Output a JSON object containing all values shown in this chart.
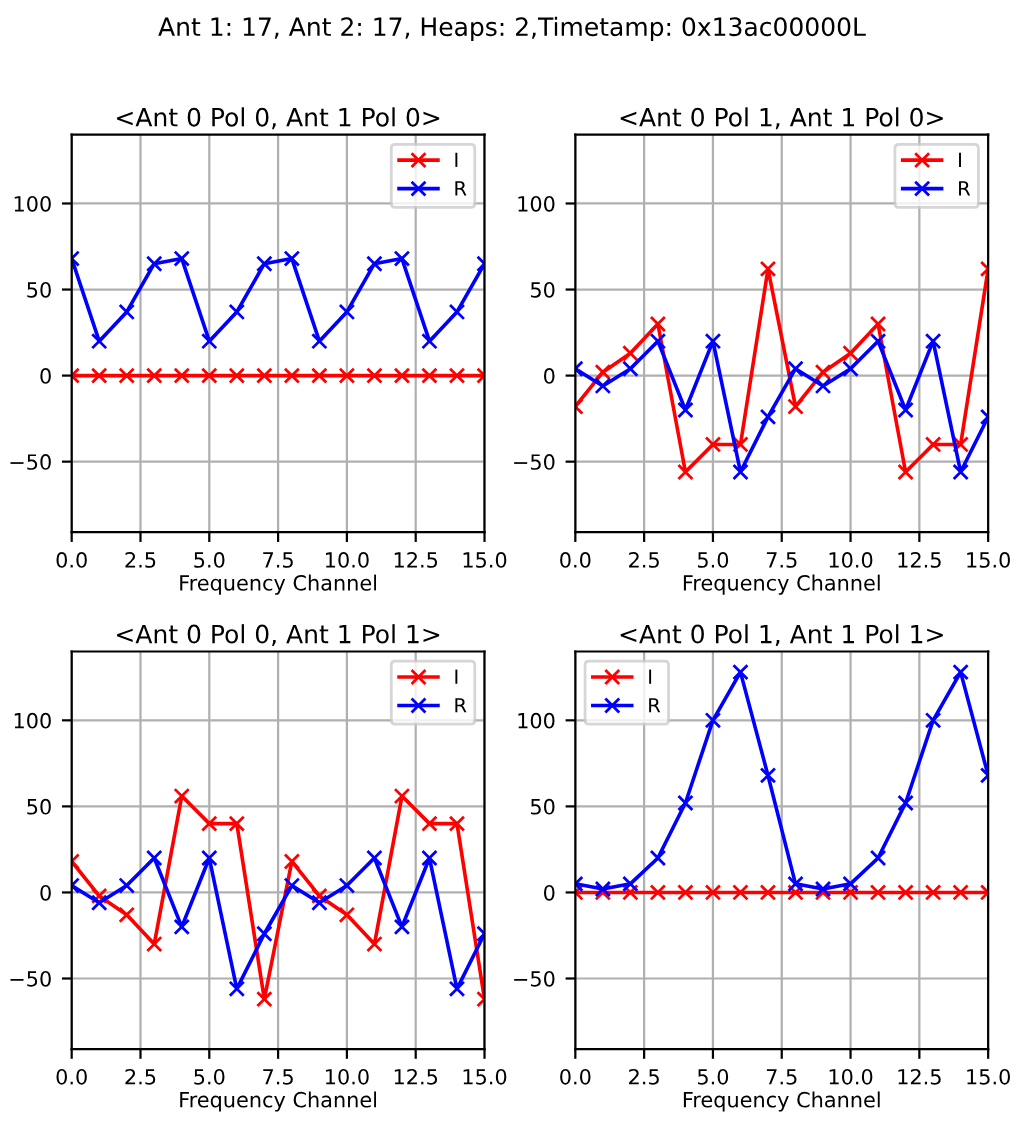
{
  "chart_data": [
    {
      "type": "line",
      "title": "<Ant 0 Pol 0, Ant 1 Pol 0>",
      "xlabel": "Frequency Channel",
      "x": [
        0,
        1,
        2,
        3,
        4,
        5,
        6,
        7,
        8,
        9,
        10,
        11,
        12,
        13,
        14,
        15
      ],
      "xlim": [
        0,
        15
      ],
      "xticks": [
        {
          "value": 0,
          "label": "0.0"
        },
        2.5,
        {
          "value": 5,
          "label": "5.0"
        },
        7.5,
        {
          "value": 10,
          "label": "10.0"
        },
        12.5,
        {
          "value": 15,
          "label": "15.0"
        }
      ],
      "ylim": [
        -91,
        140
      ],
      "yticks": [
        -50,
        0,
        50,
        100
      ],
      "grid": true,
      "legend": "top right",
      "marker": "cross",
      "annotations": [
        "Ant 1: 17, Ant 2: 17, Heaps: 2,Timetamp: 0x13ac00000L"
      ],
      "series": [
        {
          "name": "I",
          "color": "#ff0000",
          "values": [
            0,
            0,
            0,
            0,
            0,
            0,
            0,
            0,
            0,
            0,
            0,
            0,
            0,
            0,
            0,
            0
          ]
        },
        {
          "name": "R",
          "color": "#0000ff",
          "values": [
            68,
            20,
            37,
            65,
            68,
            20,
            37,
            65,
            68,
            20,
            37,
            65,
            68,
            20,
            37,
            65
          ]
        }
      ]
    },
    {
      "type": "line",
      "title": "<Ant 0 Pol 1, Ant 1 Pol 0>",
      "xlabel": "Frequency Channel",
      "x": [
        0,
        1,
        2,
        3,
        4,
        5,
        6,
        7,
        8,
        9,
        10,
        11,
        12,
        13,
        14,
        15
      ],
      "xlim": [
        0,
        15
      ],
      "xticks": [
        {
          "value": 0,
          "label": "0.0"
        },
        2.5,
        {
          "value": 5,
          "label": "5.0"
        },
        7.5,
        {
          "value": 10,
          "label": "10.0"
        },
        12.5,
        {
          "value": 15,
          "label": "15.0"
        }
      ],
      "ylim": [
        -91,
        140
      ],
      "yticks": [
        -50,
        0,
        50,
        100
      ],
      "grid": true,
      "legend": "top right",
      "marker": "cross",
      "series": [
        {
          "name": "I",
          "color": "#ff0000",
          "values": [
            -18,
            2,
            13,
            30,
            -56,
            -40,
            -40,
            62,
            -18,
            2,
            13,
            30,
            -56,
            -40,
            -40,
            62
          ]
        },
        {
          "name": "R",
          "color": "#0000ff",
          "values": [
            4,
            -6,
            4,
            20,
            -20,
            20,
            -56,
            -24,
            4,
            -6,
            4,
            20,
            -20,
            20,
            -56,
            -24
          ]
        }
      ]
    },
    {
      "type": "line",
      "title": "<Ant 0 Pol 0, Ant 1 Pol 1>",
      "xlabel": "Frequency Channel",
      "x": [
        0,
        1,
        2,
        3,
        4,
        5,
        6,
        7,
        8,
        9,
        10,
        11,
        12,
        13,
        14,
        15
      ],
      "xlim": [
        0,
        15
      ],
      "xticks": [
        {
          "value": 0,
          "label": "0.0"
        },
        2.5,
        {
          "value": 5,
          "label": "5.0"
        },
        7.5,
        {
          "value": 10,
          "label": "10.0"
        },
        12.5,
        {
          "value": 15,
          "label": "15.0"
        }
      ],
      "ylim": [
        -91,
        140
      ],
      "yticks": [
        -50,
        0,
        50,
        100
      ],
      "grid": true,
      "legend": "top right",
      "marker": "cross",
      "series": [
        {
          "name": "I",
          "color": "#ff0000",
          "values": [
            18,
            -2,
            -13,
            -30,
            56,
            40,
            40,
            -62,
            18,
            -2,
            -13,
            -30,
            56,
            40,
            40,
            -62
          ]
        },
        {
          "name": "R",
          "color": "#0000ff",
          "values": [
            4,
            -6,
            4,
            20,
            -20,
            20,
            -56,
            -24,
            4,
            -6,
            4,
            20,
            -20,
            20,
            -56,
            -24
          ]
        }
      ]
    },
    {
      "type": "line",
      "title": "<Ant 0 Pol 1, Ant 1 Pol 1>",
      "xlabel": "Frequency Channel",
      "x": [
        0,
        1,
        2,
        3,
        4,
        5,
        6,
        7,
        8,
        9,
        10,
        11,
        12,
        13,
        14,
        15
      ],
      "xlim": [
        0,
        15
      ],
      "xticks": [
        {
          "value": 0,
          "label": "0.0"
        },
        2.5,
        {
          "value": 5,
          "label": "5.0"
        },
        7.5,
        {
          "value": 10,
          "label": "10.0"
        },
        12.5,
        {
          "value": 15,
          "label": "15.0"
        }
      ],
      "ylim": [
        -91,
        140
      ],
      "yticks": [
        -50,
        0,
        50,
        100
      ],
      "grid": true,
      "legend": "top left",
      "marker": "cross",
      "series": [
        {
          "name": "I",
          "color": "#ff0000",
          "values": [
            0,
            0,
            0,
            0,
            0,
            0,
            0,
            0,
            0,
            0,
            0,
            0,
            0,
            0,
            0,
            0
          ]
        },
        {
          "name": "R",
          "color": "#0000ff",
          "values": [
            5,
            2,
            5,
            20,
            52,
            100,
            128,
            68,
            5,
            2,
            5,
            20,
            52,
            100,
            128,
            68
          ]
        }
      ]
    }
  ]
}
